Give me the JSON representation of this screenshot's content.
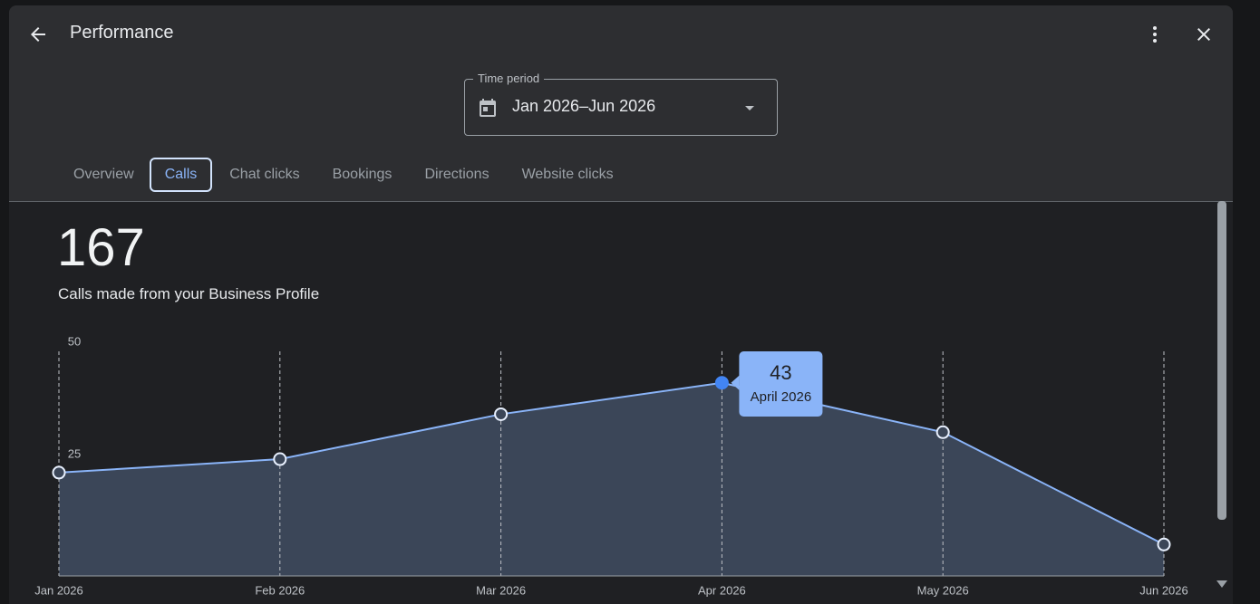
{
  "header": {
    "title": "Performance"
  },
  "time_period": {
    "label": "Time period",
    "value": "Jan 2026–Jun 2026"
  },
  "tabs": [
    "Overview",
    "Calls",
    "Chat clicks",
    "Bookings",
    "Directions",
    "Website clicks"
  ],
  "selected_tab": 1,
  "summary": {
    "total": 167,
    "caption": "Calls made from your Business Profile"
  },
  "chart_data": {
    "type": "area",
    "categories": [
      "Jan 2026",
      "Feb 2026",
      "Mar 2026",
      "Apr 2026",
      "May 2026",
      "Jun 2026"
    ],
    "series": [
      {
        "name": "Calls",
        "color": "#8ab4f8",
        "values": [
          23,
          26,
          36,
          43,
          32,
          7
        ]
      }
    ],
    "ylim": [
      0,
      50
    ],
    "yticks": [
      25,
      50
    ],
    "grid": true,
    "tooltip": {
      "index": 3,
      "label": "April 2026"
    }
  }
}
